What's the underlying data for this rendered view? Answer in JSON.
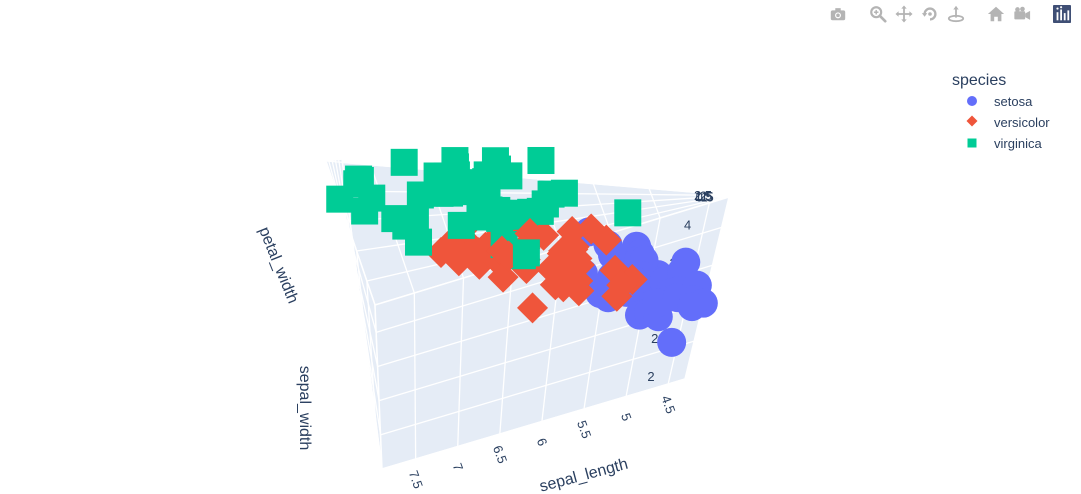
{
  "modebar": {
    "buttons": [
      {
        "name": "camera-icon"
      },
      {
        "name": "zoom-icon"
      },
      {
        "name": "pan-icon"
      },
      {
        "name": "orbit-rotation-icon"
      },
      {
        "name": "turntable-rotation-icon"
      },
      {
        "name": "home-icon"
      },
      {
        "name": "camera-view-icon"
      },
      {
        "name": "plotly-logo-icon"
      }
    ],
    "colors": {
      "icon": "#b4b4b4",
      "logo": "#3f4f75"
    }
  },
  "chart_data": {
    "type": "scatter3d",
    "legend": {
      "title": "species",
      "placement": "top-right"
    },
    "axes": {
      "x": {
        "title": "sepal_length",
        "range": [
          4.3,
          7.9
        ],
        "ticks": [
          "4.5",
          "5",
          "5.5",
          "6",
          "6.5",
          "7",
          "7.5"
        ]
      },
      "y": {
        "title": "sepal_width",
        "range": [
          2.0,
          4.4
        ],
        "ticks": [
          "2",
          "2.5",
          "3",
          "3.5",
          "4"
        ]
      },
      "z": {
        "title": "petal_width",
        "range": [
          0.1,
          2.5
        ],
        "ticks": [
          "0.5",
          "1",
          "1.5",
          "2",
          "2.5"
        ]
      }
    },
    "grid": true,
    "series": [
      {
        "name": "setosa",
        "symbol": "circle",
        "color": "#636efa",
        "x": [
          5.1,
          4.9,
          4.7,
          4.6,
          5.0,
          5.4,
          4.6,
          5.0,
          4.4,
          4.9,
          5.4,
          4.8,
          4.8,
          4.3,
          5.8,
          5.7,
          5.4,
          5.1,
          5.7,
          5.1,
          5.4,
          5.1,
          4.6,
          5.1,
          4.8,
          5.0,
          5.0,
          5.2,
          5.2,
          4.7,
          4.8,
          5.4,
          5.2,
          5.5,
          4.9,
          5.0,
          5.5,
          4.9,
          4.4,
          5.1,
          5.0,
          4.5,
          4.4,
          5.0,
          5.1,
          4.8,
          5.1,
          4.6,
          5.3,
          5.0
        ],
        "y": [
          3.5,
          3.0,
          3.2,
          3.1,
          3.6,
          3.9,
          3.4,
          3.4,
          2.9,
          3.1,
          3.7,
          3.4,
          3.0,
          3.0,
          4.0,
          4.4,
          3.9,
          3.5,
          3.8,
          3.8,
          3.4,
          3.7,
          3.6,
          3.3,
          3.4,
          3.0,
          3.4,
          3.5,
          3.4,
          3.2,
          3.1,
          3.4,
          4.1,
          4.2,
          3.1,
          3.2,
          3.5,
          3.6,
          3.0,
          3.4,
          3.5,
          2.3,
          3.2,
          3.5,
          3.8,
          3.0,
          3.8,
          3.2,
          3.7,
          3.3
        ],
        "z": [
          0.2,
          0.2,
          0.2,
          0.2,
          0.2,
          0.4,
          0.3,
          0.2,
          0.2,
          0.1,
          0.2,
          0.2,
          0.1,
          0.1,
          0.2,
          0.4,
          0.4,
          0.3,
          0.3,
          0.3,
          0.2,
          0.4,
          0.2,
          0.5,
          0.2,
          0.2,
          0.4,
          0.2,
          0.2,
          0.2,
          0.2,
          0.4,
          0.1,
          0.2,
          0.2,
          0.2,
          0.2,
          0.1,
          0.2,
          0.2,
          0.3,
          0.3,
          0.2,
          0.6,
          0.4,
          0.3,
          0.2,
          0.2,
          0.2,
          0.2
        ]
      },
      {
        "name": "versicolor",
        "symbol": "diamond",
        "color": "#ef553b",
        "x": [
          7.0,
          6.4,
          6.9,
          5.5,
          6.5,
          5.7,
          6.3,
          4.9,
          6.6,
          5.2,
          5.0,
          5.9,
          6.0,
          6.1,
          5.6,
          6.7,
          5.6,
          5.8,
          6.2,
          5.6,
          5.9,
          6.1,
          6.3,
          6.1,
          6.4,
          6.6,
          6.8,
          6.7,
          6.0,
          5.7,
          5.5,
          5.5,
          5.8,
          6.0,
          5.4,
          6.0,
          6.7,
          6.3,
          5.6,
          5.5,
          5.5,
          6.1,
          5.8,
          5.0,
          5.6,
          5.7,
          5.7,
          6.2,
          5.1,
          5.7
        ],
        "y": [
          3.2,
          3.2,
          3.1,
          2.3,
          2.8,
          2.8,
          3.3,
          2.4,
          2.9,
          2.7,
          2.0,
          3.0,
          2.2,
          2.9,
          2.9,
          3.1,
          3.0,
          2.7,
          2.2,
          2.5,
          3.2,
          2.8,
          2.5,
          2.8,
          2.9,
          3.0,
          2.8,
          3.0,
          2.9,
          2.6,
          2.4,
          2.4,
          2.7,
          2.7,
          3.0,
          3.4,
          3.1,
          2.3,
          3.0,
          2.5,
          2.6,
          3.0,
          2.6,
          2.3,
          2.7,
          3.0,
          2.9,
          2.9,
          2.5,
          2.8
        ],
        "z": [
          1.4,
          1.5,
          1.5,
          1.3,
          1.5,
          1.3,
          1.6,
          1.0,
          1.3,
          1.4,
          1.0,
          1.5,
          1.0,
          1.4,
          1.3,
          1.4,
          1.5,
          1.0,
          1.5,
          1.1,
          1.8,
          1.3,
          1.5,
          1.2,
          1.3,
          1.4,
          1.4,
          1.7,
          1.5,
          1.0,
          1.1,
          1.0,
          1.2,
          1.6,
          1.5,
          1.6,
          1.5,
          1.3,
          1.3,
          1.3,
          1.2,
          1.4,
          1.2,
          1.0,
          1.3,
          1.2,
          1.3,
          1.3,
          1.1,
          1.3
        ]
      },
      {
        "name": "virginica",
        "symbol": "square",
        "color": "#00cc96",
        "x": [
          6.3,
          5.8,
          7.1,
          6.3,
          6.5,
          7.6,
          4.9,
          7.3,
          6.7,
          7.2,
          6.5,
          6.4,
          6.8,
          5.7,
          5.8,
          6.4,
          6.5,
          7.7,
          7.7,
          6.0,
          6.9,
          5.6,
          7.7,
          6.3,
          6.7,
          7.2,
          6.2,
          6.1,
          6.4,
          7.2,
          7.4,
          7.9,
          6.4,
          6.3,
          6.1,
          7.7,
          6.3,
          6.4,
          6.0,
          6.9,
          6.7,
          6.9,
          5.8,
          6.8,
          6.7,
          6.7,
          6.3,
          6.5,
          6.2,
          5.9
        ],
        "y": [
          3.3,
          2.7,
          3.0,
          2.9,
          3.0,
          3.0,
          2.5,
          2.9,
          2.5,
          3.6,
          3.2,
          2.7,
          3.0,
          2.5,
          2.8,
          3.2,
          3.0,
          3.8,
          2.6,
          2.2,
          3.2,
          2.8,
          2.8,
          2.7,
          3.3,
          3.2,
          2.8,
          3.0,
          2.8,
          3.0,
          2.8,
          3.8,
          2.8,
          2.8,
          2.6,
          3.0,
          3.4,
          3.1,
          3.0,
          3.1,
          3.1,
          3.1,
          2.7,
          3.2,
          3.3,
          3.0,
          2.5,
          3.0,
          3.4,
          3.0
        ],
        "z": [
          2.5,
          1.9,
          2.1,
          1.8,
          2.2,
          2.1,
          1.7,
          1.8,
          1.8,
          2.5,
          2.0,
          1.9,
          2.1,
          2.0,
          2.4,
          2.3,
          1.8,
          2.2,
          2.3,
          1.5,
          2.3,
          2.0,
          2.0,
          1.8,
          2.1,
          1.8,
          1.8,
          1.8,
          2.1,
          1.6,
          1.9,
          2.0,
          2.2,
          1.5,
          1.4,
          2.3,
          2.4,
          1.8,
          1.8,
          2.1,
          2.4,
          2.3,
          1.9,
          2.3,
          2.5,
          2.3,
          1.9,
          2.0,
          2.3,
          1.8
        ]
      }
    ]
  }
}
